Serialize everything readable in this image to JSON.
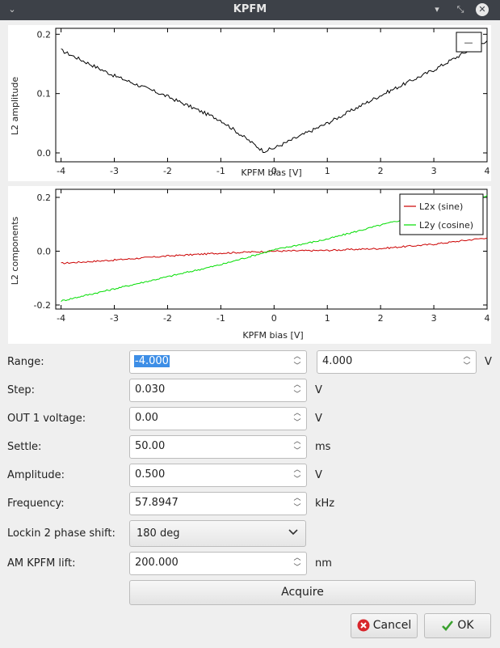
{
  "window": {
    "title": "KPFM"
  },
  "plot_top": {
    "ylabel": "L2 amplitude",
    "xlabel": "KPFM bias [V]",
    "x_ticks": [
      "-4",
      "-3",
      "-2",
      "-1",
      "0",
      "1",
      "2",
      "3",
      "4"
    ],
    "y_ticks": [
      "0.2",
      "0.1",
      "0.0"
    ],
    "legend": [
      "—"
    ]
  },
  "plot_bottom": {
    "ylabel": "L2 components",
    "xlabel": "KPFM bias [V]",
    "x_ticks": [
      "-4",
      "-3",
      "-2",
      "-1",
      "0",
      "1",
      "2",
      "3",
      "4"
    ],
    "y_ticks": [
      "0.2",
      "0.0",
      "-0.2"
    ],
    "legend": [
      "L2x (sine)",
      "L2y (cosine)"
    ]
  },
  "chart_data": [
    {
      "type": "line",
      "xlabel": "KPFM bias [V]",
      "ylabel": "L2 amplitude",
      "xlim": [
        -4.1,
        4.0
      ],
      "ylim": [
        -0.015,
        0.21
      ],
      "grid": false,
      "legend_position": "top-right",
      "series": [
        {
          "color": "#000000",
          "x": [
            -4.0,
            -3.0,
            -2.0,
            -1.0,
            -0.2,
            0.0,
            1.0,
            2.0,
            3.0,
            4.0
          ],
          "y": [
            0.173,
            0.13,
            0.095,
            0.055,
            0.003,
            0.008,
            0.05,
            0.097,
            0.14,
            0.19
          ]
        }
      ]
    },
    {
      "type": "line",
      "xlabel": "KPFM bias [V]",
      "ylabel": "L2 components",
      "xlim": [
        -4.1,
        4.0
      ],
      "ylim": [
        -0.215,
        0.23
      ],
      "grid": false,
      "legend_position": "top-right",
      "series": [
        {
          "name": "L2x (sine)",
          "color": "#cc0000",
          "x": [
            -4.0,
            -3.0,
            -2.0,
            -1.0,
            0.0,
            1.0,
            2.0,
            3.0,
            4.0
          ],
          "y": [
            -0.045,
            -0.033,
            -0.018,
            -0.007,
            0.0,
            0.003,
            0.01,
            0.026,
            0.05
          ]
        },
        {
          "name": "L2y (cosine)",
          "color": "#00dd00",
          "x": [
            -4.0,
            -3.0,
            -2.0,
            -1.0,
            0.0,
            1.0,
            2.0,
            3.0,
            4.0
          ],
          "y": [
            -0.185,
            -0.14,
            -0.095,
            -0.05,
            0.005,
            0.045,
            0.097,
            0.145,
            0.205
          ]
        }
      ]
    }
  ],
  "form": {
    "range": {
      "label": "Range:",
      "min": "-4.000",
      "max": "4.000",
      "unit": "V"
    },
    "step": {
      "label": "Step:",
      "value": "0.030",
      "unit": "V"
    },
    "out1": {
      "label": "OUT 1 voltage:",
      "value": "0.00",
      "unit": "V"
    },
    "settle": {
      "label": "Settle:",
      "value": "50.00",
      "unit": "ms"
    },
    "amplitude": {
      "label": "Amplitude:",
      "value": "0.500",
      "unit": "V"
    },
    "frequency": {
      "label": "Frequency:",
      "value": "57.8947",
      "unit": "kHz"
    },
    "phase": {
      "label": "Lockin 2 phase shift:",
      "value": "180 deg"
    },
    "lift": {
      "label": "AM KPFM lift:",
      "value": "200.000",
      "unit": "nm"
    }
  },
  "buttons": {
    "acquire": "Acquire",
    "cancel": "Cancel",
    "ok": "OK"
  }
}
